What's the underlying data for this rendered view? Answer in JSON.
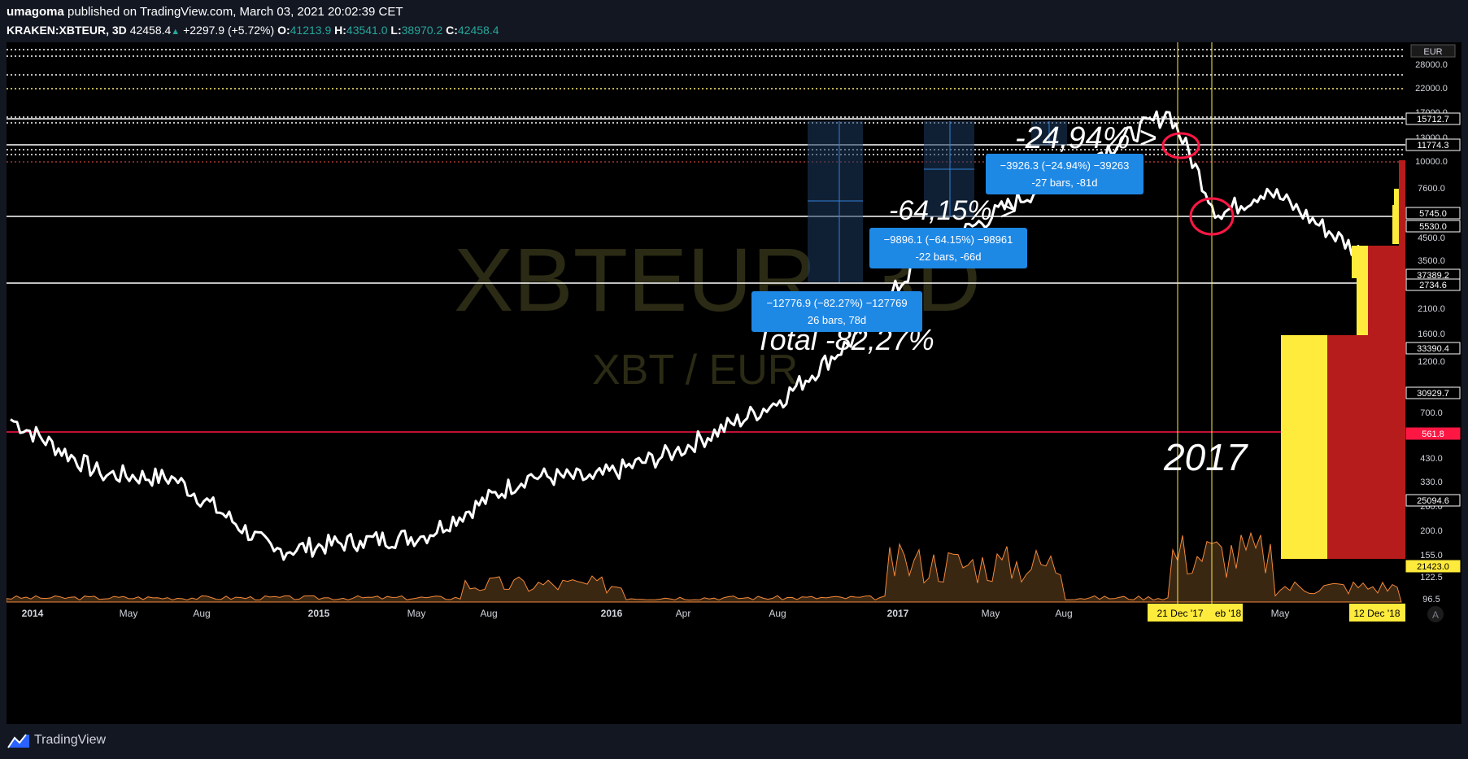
{
  "header": {
    "author": "umagoma",
    "published": "published on TradingView.com, March 03, 2021 20:02:39 CET",
    "symbol": "KRAKEN:XBTEUR, 3D",
    "last": "42458.4",
    "change": "+2297.9 (+5.72%)",
    "o_label": "O:",
    "o_value": "41213.9",
    "h_label": "H:",
    "h_value": "43541.0",
    "l_label": "L:",
    "l_value": "38970.2",
    "c_label": "C:",
    "c_value": "42458.4"
  },
  "watermark": {
    "symbol": "XBTEUR, 3D",
    "pair": "XBT / EUR"
  },
  "annotations": {
    "pct1": "-24,94% >",
    "pct2": "-64,15% >",
    "total": "Total  -82,27%",
    "year": "2017"
  },
  "measure_boxes": [
    {
      "line1": "−3926.3 (−24.94%) −39263",
      "line2": "-27 bars, -81d"
    },
    {
      "line1": "−9896.1 (−64.15%) −98961",
      "line2": "-22 bars, -66d"
    },
    {
      "line1": "−12776.9 (−82.27%) −127769",
      "line2": "26 bars, 78d"
    }
  ],
  "price_axis": {
    "currency": "EUR",
    "ticks": [
      "28000.0",
      "22000.0",
      "17000.0",
      "13000.0",
      "10000.0",
      "7600.0",
      "4500.0",
      "3500.0",
      "2100.0",
      "1600.0",
      "1200.0",
      "700.0",
      "430.0",
      "330.0",
      "260.0",
      "200.0",
      "155.0",
      "122.5",
      "96.5"
    ],
    "labels": [
      {
        "text": "15712.7",
        "color": "#ffffff"
      },
      {
        "text": "11774.3",
        "color": "#ffffff"
      },
      {
        "text": "5745.0",
        "color": "#ffffff"
      },
      {
        "text": "5530.0",
        "color": "#ffffff"
      },
      {
        "text": "37389.2",
        "color": "#ffffff"
      },
      {
        "text": "2734.6",
        "color": "#ffffff"
      },
      {
        "text": "33390.4",
        "color": "#ffffff"
      },
      {
        "text": "30929.7",
        "color": "#ffffff"
      },
      {
        "text": "561.8",
        "color": "#ff1744"
      },
      {
        "text": "25094.6",
        "color": "#ffffff"
      },
      {
        "text": "21423.0",
        "color": "#ffeb3b"
      }
    ]
  },
  "time_axis": {
    "ticks": [
      "2014",
      "May",
      "Aug",
      "2015",
      "May",
      "Aug",
      "2016",
      "Apr",
      "Aug",
      "2017",
      "May",
      "Aug",
      "May"
    ],
    "highlights": [
      "21 Dec '17",
      "eb '18",
      "12 Dec '18"
    ]
  },
  "footer": {
    "brand": "TradingView"
  },
  "chart_data": {
    "type": "line",
    "log_scale": true,
    "x": [
      "2014-01",
      "2014-05",
      "2014-08",
      "2015-01",
      "2015-05",
      "2015-08",
      "2016-01",
      "2016-04",
      "2016-08",
      "2017-01",
      "2017-05",
      "2017-08",
      "2017-12",
      "2018-02",
      "2018-05",
      "2018-12"
    ],
    "series": [
      {
        "values": [
          700,
          400,
          380,
          180,
          200,
          210,
          390,
          380,
          500,
          850,
          1700,
          3800,
          16500,
          5700,
          7500,
          3000
        ]
      }
    ],
    "horizontal_levels": [
      15712.7,
      11774.3,
      5745.0,
      2734.6,
      561.8
    ],
    "colors": {
      "price": "#ffffff",
      "support": "#ff1744",
      "measure": "#1e88e5",
      "volume": "#f5883b",
      "highlight": "#ffeb3b"
    }
  }
}
